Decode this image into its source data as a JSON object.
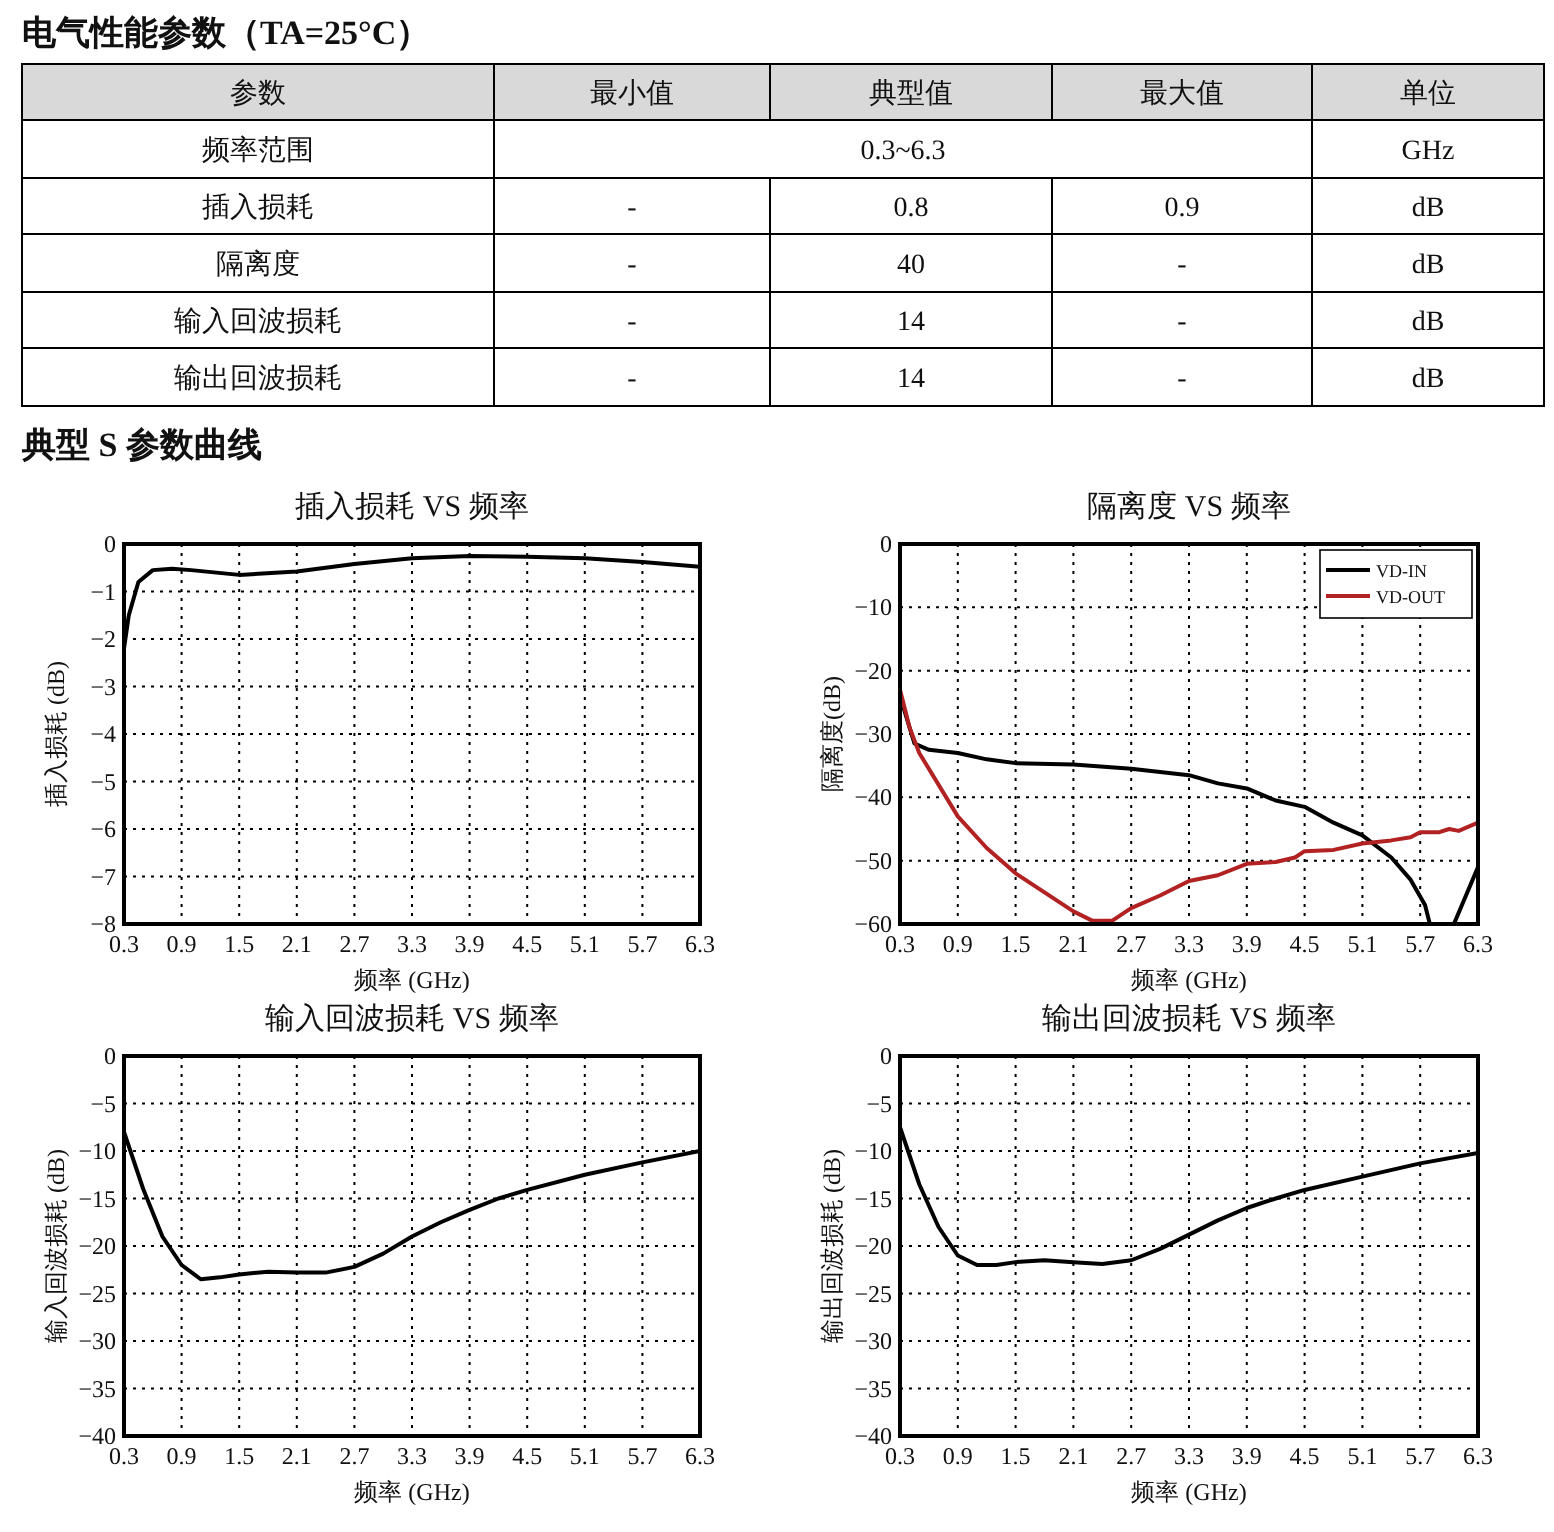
{
  "chart_data": [
    {
      "type": "other",
      "title": "电气性能参数（TA=25°C）",
      "annotations": [
        "参数",
        "最小值",
        "典型值",
        "最大值",
        "单位",
        "频率范围",
        "0.3~6.3",
        "GHz",
        "插入损耗",
        "-",
        "0.8",
        "0.9",
        "dB",
        "隔离度",
        "-",
        "40",
        "-",
        "dB",
        "输入回波损耗",
        "-",
        "14",
        "-",
        "dB",
        "输出回波损耗",
        "-",
        "14",
        "-",
        "dB",
        "典型 S 参数曲线"
      ]
    },
    {
      "type": "line",
      "title": "插入损耗 VS 频率",
      "xlabel": "频率 (GHz)",
      "ylabel": "插入损耗 (dB)",
      "xlim": [
        0.3,
        6.3
      ],
      "xticks": [
        0.3,
        0.9,
        1.5,
        2.1,
        2.7,
        3.3,
        3.9,
        4.5,
        5.1,
        5.7,
        6.3
      ],
      "ylim": [
        -8,
        0
      ],
      "yticks": [
        0,
        -1,
        -2,
        -3,
        -4,
        -5,
        -6,
        -7,
        -8
      ],
      "grid": true,
      "line_style": "solid",
      "x": [
        0.3,
        0.35,
        0.45,
        0.6,
        0.8,
        1.0,
        1.5,
        2.1,
        2.7,
        3.3,
        3.9,
        4.5,
        5.1,
        5.7,
        6.3
      ],
      "series": [
        {
          "color": "#000000",
          "values": [
            -2.2,
            -1.5,
            -0.8,
            -0.55,
            -0.52,
            -0.55,
            -0.65,
            -0.58,
            -0.42,
            -0.3,
            -0.25,
            -0.27,
            -0.3,
            -0.38,
            -0.48
          ]
        }
      ]
    },
    {
      "type": "line",
      "title": "隔离度 VS 频率",
      "xlabel": "频率 (GHz)",
      "ylabel": "隔离度(dB)",
      "xlim": [
        0.3,
        6.3
      ],
      "xticks": [
        0.3,
        0.9,
        1.5,
        2.1,
        2.7,
        3.3,
        3.9,
        4.5,
        5.1,
        5.7,
        6.3
      ],
      "ylim": [
        -60,
        0
      ],
      "yticks": [
        0,
        -10,
        -20,
        -30,
        -40,
        -50,
        -60
      ],
      "grid": true,
      "line_style": "solid",
      "legend": "top right",
      "series": [
        {
          "name": "VD-IN",
          "color": "#000000",
          "x": [
            0.3,
            0.45,
            0.6,
            0.9,
            1.2,
            1.5,
            2.1,
            2.7,
            3.3,
            3.6,
            3.9,
            4.2,
            4.5,
            4.8,
            5.1,
            5.4,
            5.6,
            5.75,
            5.8,
            6.05,
            6.3
          ],
          "values": [
            -24,
            -31.5,
            -32.5,
            -33,
            -34,
            -34.6,
            -34.8,
            -35.5,
            -36.5,
            -37.8,
            -38.6,
            -40.5,
            -41.5,
            -44,
            -46,
            -49.5,
            -53,
            -57,
            -60,
            -60,
            -51
          ]
        },
        {
          "name": "VD-OUT",
          "color": "#b22222",
          "x": [
            0.3,
            0.4,
            0.5,
            0.9,
            1.2,
            1.5,
            1.8,
            2.1,
            2.3,
            2.5,
            2.7,
            3.0,
            3.3,
            3.6,
            3.9,
            4.2,
            4.4,
            4.5,
            4.8,
            5.1,
            5.4,
            5.6,
            5.7,
            5.9,
            6.0,
            6.1,
            6.3
          ],
          "values": [
            -23,
            -29,
            -33,
            -43,
            -48,
            -52,
            -55,
            -58,
            -59.5,
            -59.5,
            -57.5,
            -55.5,
            -53.2,
            -52.3,
            -50.5,
            -50.2,
            -49.5,
            -48.5,
            -48.3,
            -47.3,
            -46.8,
            -46.3,
            -45.5,
            -45.5,
            -45,
            -45.3,
            -44
          ]
        }
      ]
    },
    {
      "type": "line",
      "title": "输入回波损耗 VS 频率",
      "xlabel": "频率 (GHz)",
      "ylabel": "输入回波损耗 (dB)",
      "xlim": [
        0.3,
        6.3
      ],
      "xticks": [
        0.3,
        0.9,
        1.5,
        2.1,
        2.7,
        3.3,
        3.9,
        4.5,
        5.1,
        5.7,
        6.3
      ],
      "ylim": [
        -40,
        0
      ],
      "yticks": [
        0,
        -5,
        -10,
        -15,
        -20,
        -25,
        -30,
        -35,
        -40
      ],
      "grid": true,
      "line_style": "solid",
      "x": [
        0.3,
        0.5,
        0.7,
        0.9,
        1.1,
        1.3,
        1.5,
        1.8,
        2.1,
        2.4,
        2.7,
        3.0,
        3.3,
        3.6,
        3.9,
        4.2,
        4.5,
        5.1,
        5.7,
        6.3
      ],
      "series": [
        {
          "color": "#000000",
          "values": [
            -8,
            -14,
            -19,
            -22,
            -23.5,
            -23.3,
            -23,
            -22.7,
            -22.8,
            -22.8,
            -22.2,
            -20.8,
            -19,
            -17.5,
            -16.2,
            -15,
            -14.1,
            -12.5,
            -11.2,
            -10
          ]
        }
      ]
    },
    {
      "type": "line",
      "title": "输出回波损耗 VS 频率",
      "xlabel": "频率 (GHz)",
      "ylabel": "输出回波损耗 (dB)",
      "xlim": [
        0.3,
        6.3
      ],
      "xticks": [
        0.3,
        0.9,
        1.5,
        2.1,
        2.7,
        3.3,
        3.9,
        4.5,
        5.1,
        5.7,
        6.3
      ],
      "ylim": [
        -40,
        0
      ],
      "yticks": [
        0,
        -5,
        -10,
        -15,
        -20,
        -25,
        -30,
        -35,
        -40
      ],
      "grid": true,
      "line_style": "solid",
      "x": [
        0.3,
        0.5,
        0.7,
        0.9,
        1.1,
        1.3,
        1.5,
        1.8,
        2.1,
        2.4,
        2.7,
        3.0,
        3.3,
        3.6,
        3.9,
        4.2,
        4.5,
        5.1,
        5.7,
        6.3
      ],
      "series": [
        {
          "color": "#000000",
          "values": [
            -7.5,
            -13.5,
            -18,
            -21,
            -22,
            -22,
            -21.7,
            -21.5,
            -21.7,
            -21.9,
            -21.5,
            -20.3,
            -18.8,
            -17.3,
            -16,
            -15,
            -14.1,
            -12.7,
            -11.3,
            -10.2
          ]
        }
      ]
    }
  ]
}
